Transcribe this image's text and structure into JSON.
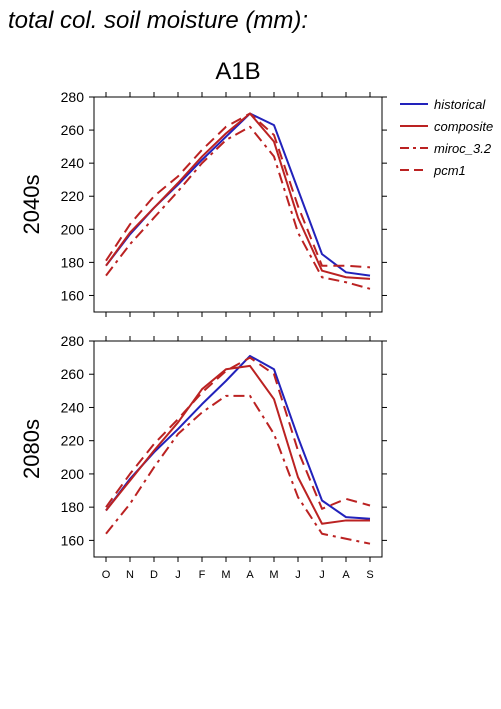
{
  "page_title": "total col. soil moisture (mm):",
  "scenario": "A1B",
  "months": [
    "O",
    "N",
    "D",
    "J",
    "F",
    "M",
    "A",
    "M",
    "J",
    "J",
    "A",
    "S"
  ],
  "colors": {
    "historical": "#2222bb",
    "projection": "#bb2222",
    "axis": "#000000"
  },
  "legend": [
    {
      "key": "historical",
      "label": "historical",
      "color": "#2222bb",
      "dash": "solid"
    },
    {
      "key": "composite",
      "label": "composite",
      "color": "#bb2222",
      "dash": "solid"
    },
    {
      "key": "miroc",
      "label": "miroc_3.2",
      "color": "#bb2222",
      "dash": "dashdot"
    },
    {
      "key": "pcm1",
      "label": "pcm1",
      "color": "#bb2222",
      "dash": "dash"
    }
  ],
  "chart_data": [
    {
      "type": "line",
      "panel_label": "2040s",
      "x": [
        "O",
        "N",
        "D",
        "J",
        "F",
        "M",
        "A",
        "M",
        "J",
        "J",
        "A",
        "S"
      ],
      "ylim": [
        150,
        280
      ],
      "yticks": [
        160,
        180,
        200,
        220,
        240,
        260,
        280
      ],
      "series": [
        {
          "name": "historical",
          "values": [
            178,
            197,
            213,
            227,
            242,
            256,
            270,
            263,
            224,
            185,
            174,
            172
          ]
        },
        {
          "name": "composite",
          "values": [
            178,
            198,
            213,
            228,
            244,
            258,
            270,
            253,
            207,
            175,
            171,
            170
          ]
        },
        {
          "name": "miroc_3.2",
          "values": [
            172,
            191,
            207,
            223,
            240,
            254,
            262,
            244,
            198,
            171,
            168,
            164
          ]
        },
        {
          "name": "pcm1",
          "values": [
            181,
            203,
            220,
            232,
            248,
            262,
            270,
            257,
            214,
            178,
            178,
            177
          ]
        }
      ]
    },
    {
      "type": "line",
      "panel_label": "2080s",
      "x": [
        "O",
        "N",
        "D",
        "J",
        "F",
        "M",
        "A",
        "M",
        "J",
        "J",
        "A",
        "S"
      ],
      "ylim": [
        150,
        280
      ],
      "yticks": [
        160,
        180,
        200,
        220,
        240,
        260,
        280
      ],
      "series": [
        {
          "name": "historical",
          "values": [
            178,
            197,
            213,
            227,
            242,
            256,
            271,
            263,
            222,
            184,
            174,
            173
          ]
        },
        {
          "name": "composite",
          "values": [
            178,
            196,
            214,
            231,
            251,
            263,
            265,
            245,
            198,
            170,
            172,
            172
          ]
        },
        {
          "name": "miroc_3.2",
          "values": [
            164,
            182,
            204,
            224,
            237,
            247,
            247,
            224,
            186,
            164,
            161,
            158
          ]
        },
        {
          "name": "pcm1",
          "values": [
            180,
            200,
            218,
            233,
            249,
            262,
            270,
            260,
            214,
            179,
            185,
            181
          ]
        }
      ]
    }
  ]
}
